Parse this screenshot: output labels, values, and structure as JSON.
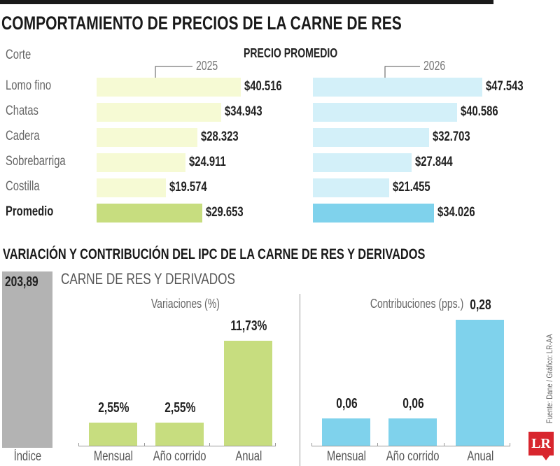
{
  "title": "COMPORTAMIENTO DE PRECIOS DE LA CARNE DE RES",
  "source": "Fuente: Dane / Gráfico: LR-AA",
  "logo": "LR",
  "chart_data": [
    {
      "type": "bar",
      "orientation": "horizontal",
      "title": "PRECIO PROMEDIO",
      "category_header": "Corte",
      "categories": [
        "Lomo fino",
        "Chatas",
        "Cadera",
        "Sobrebarriga",
        "Costilla",
        "Promedio"
      ],
      "series": [
        {
          "name": "2025",
          "values": [
            40516,
            34943,
            28323,
            24911,
            19574,
            29653
          ],
          "labels": [
            "$40.516",
            "$34.943",
            "$28.323",
            "$24.911",
            "$19.574",
            "$29.653"
          ],
          "color": "#f6fad4",
          "highlight_color": "#c7dd7f"
        },
        {
          "name": "2026",
          "values": [
            47543,
            40586,
            32703,
            27844,
            21455,
            34026
          ],
          "labels": [
            "$47.543",
            "$40.586",
            "$32.703",
            "$27.844",
            "$21.455",
            "$34.026"
          ],
          "color": "#d3f0f9",
          "highlight_color": "#7fd2ec"
        }
      ]
    },
    {
      "type": "bar",
      "section_title": "VARIACIÓN Y CONTRIBUCIÓN DEL IPC DE LA CARNE DE RES Y DERIVADOS",
      "subtitle": "CARNE DE RES Y DERIVADOS",
      "index": {
        "label": "Índice",
        "value": 203.89,
        "value_label": "203,89",
        "color": "#b3b3b3"
      },
      "panels": [
        {
          "title": "Variaciones (%)",
          "categories": [
            "Mensual",
            "Año corrido",
            "Anual"
          ],
          "values": [
            2.55,
            2.55,
            11.73
          ],
          "labels": [
            "2,55%",
            "2,55%",
            "11,73%"
          ],
          "color": "#c7dd7f"
        },
        {
          "title": "Contribuciones (pps.)",
          "categories": [
            "Mensual",
            "Año corrido",
            "Anual"
          ],
          "values": [
            0.06,
            0.06,
            0.28
          ],
          "labels": [
            "0,06",
            "0,06",
            "0,28"
          ],
          "color": "#7fd2ec"
        }
      ]
    }
  ]
}
